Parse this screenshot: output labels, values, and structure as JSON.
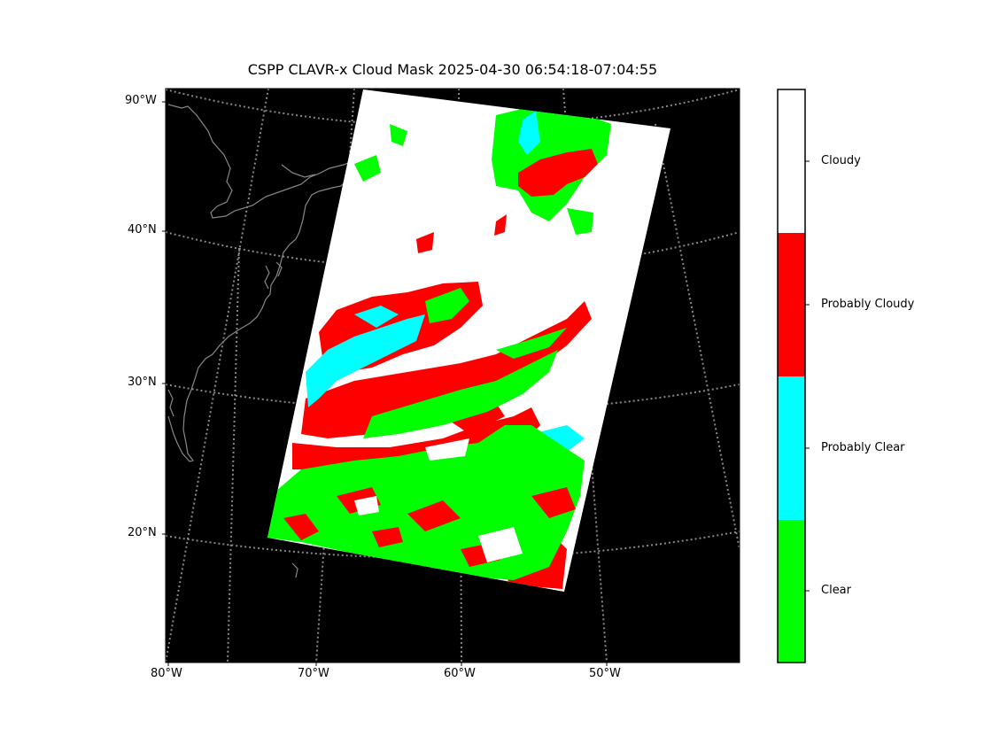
{
  "title": "CSPP CLAVR-x Cloud Mask 2025-04-30 06:54:18-07:04:55",
  "map": {
    "background_color": "#000000",
    "coastline_color": "#888888",
    "graticule_color": "#888888",
    "lat_labels": [
      "90°W",
      "40°N",
      "30°N",
      "20°N"
    ],
    "lon_labels": [
      "80°W",
      "70°W",
      "60°W",
      "50°W"
    ]
  },
  "legend": {
    "classes": [
      {
        "label": "Cloudy",
        "color": "#ffffff"
      },
      {
        "label": "Probably Cloudy",
        "color": "#ff0000"
      },
      {
        "label": "Probably Clear",
        "color": "#00ffff"
      },
      {
        "label": "Clear",
        "color": "#00ff00"
      }
    ]
  }
}
